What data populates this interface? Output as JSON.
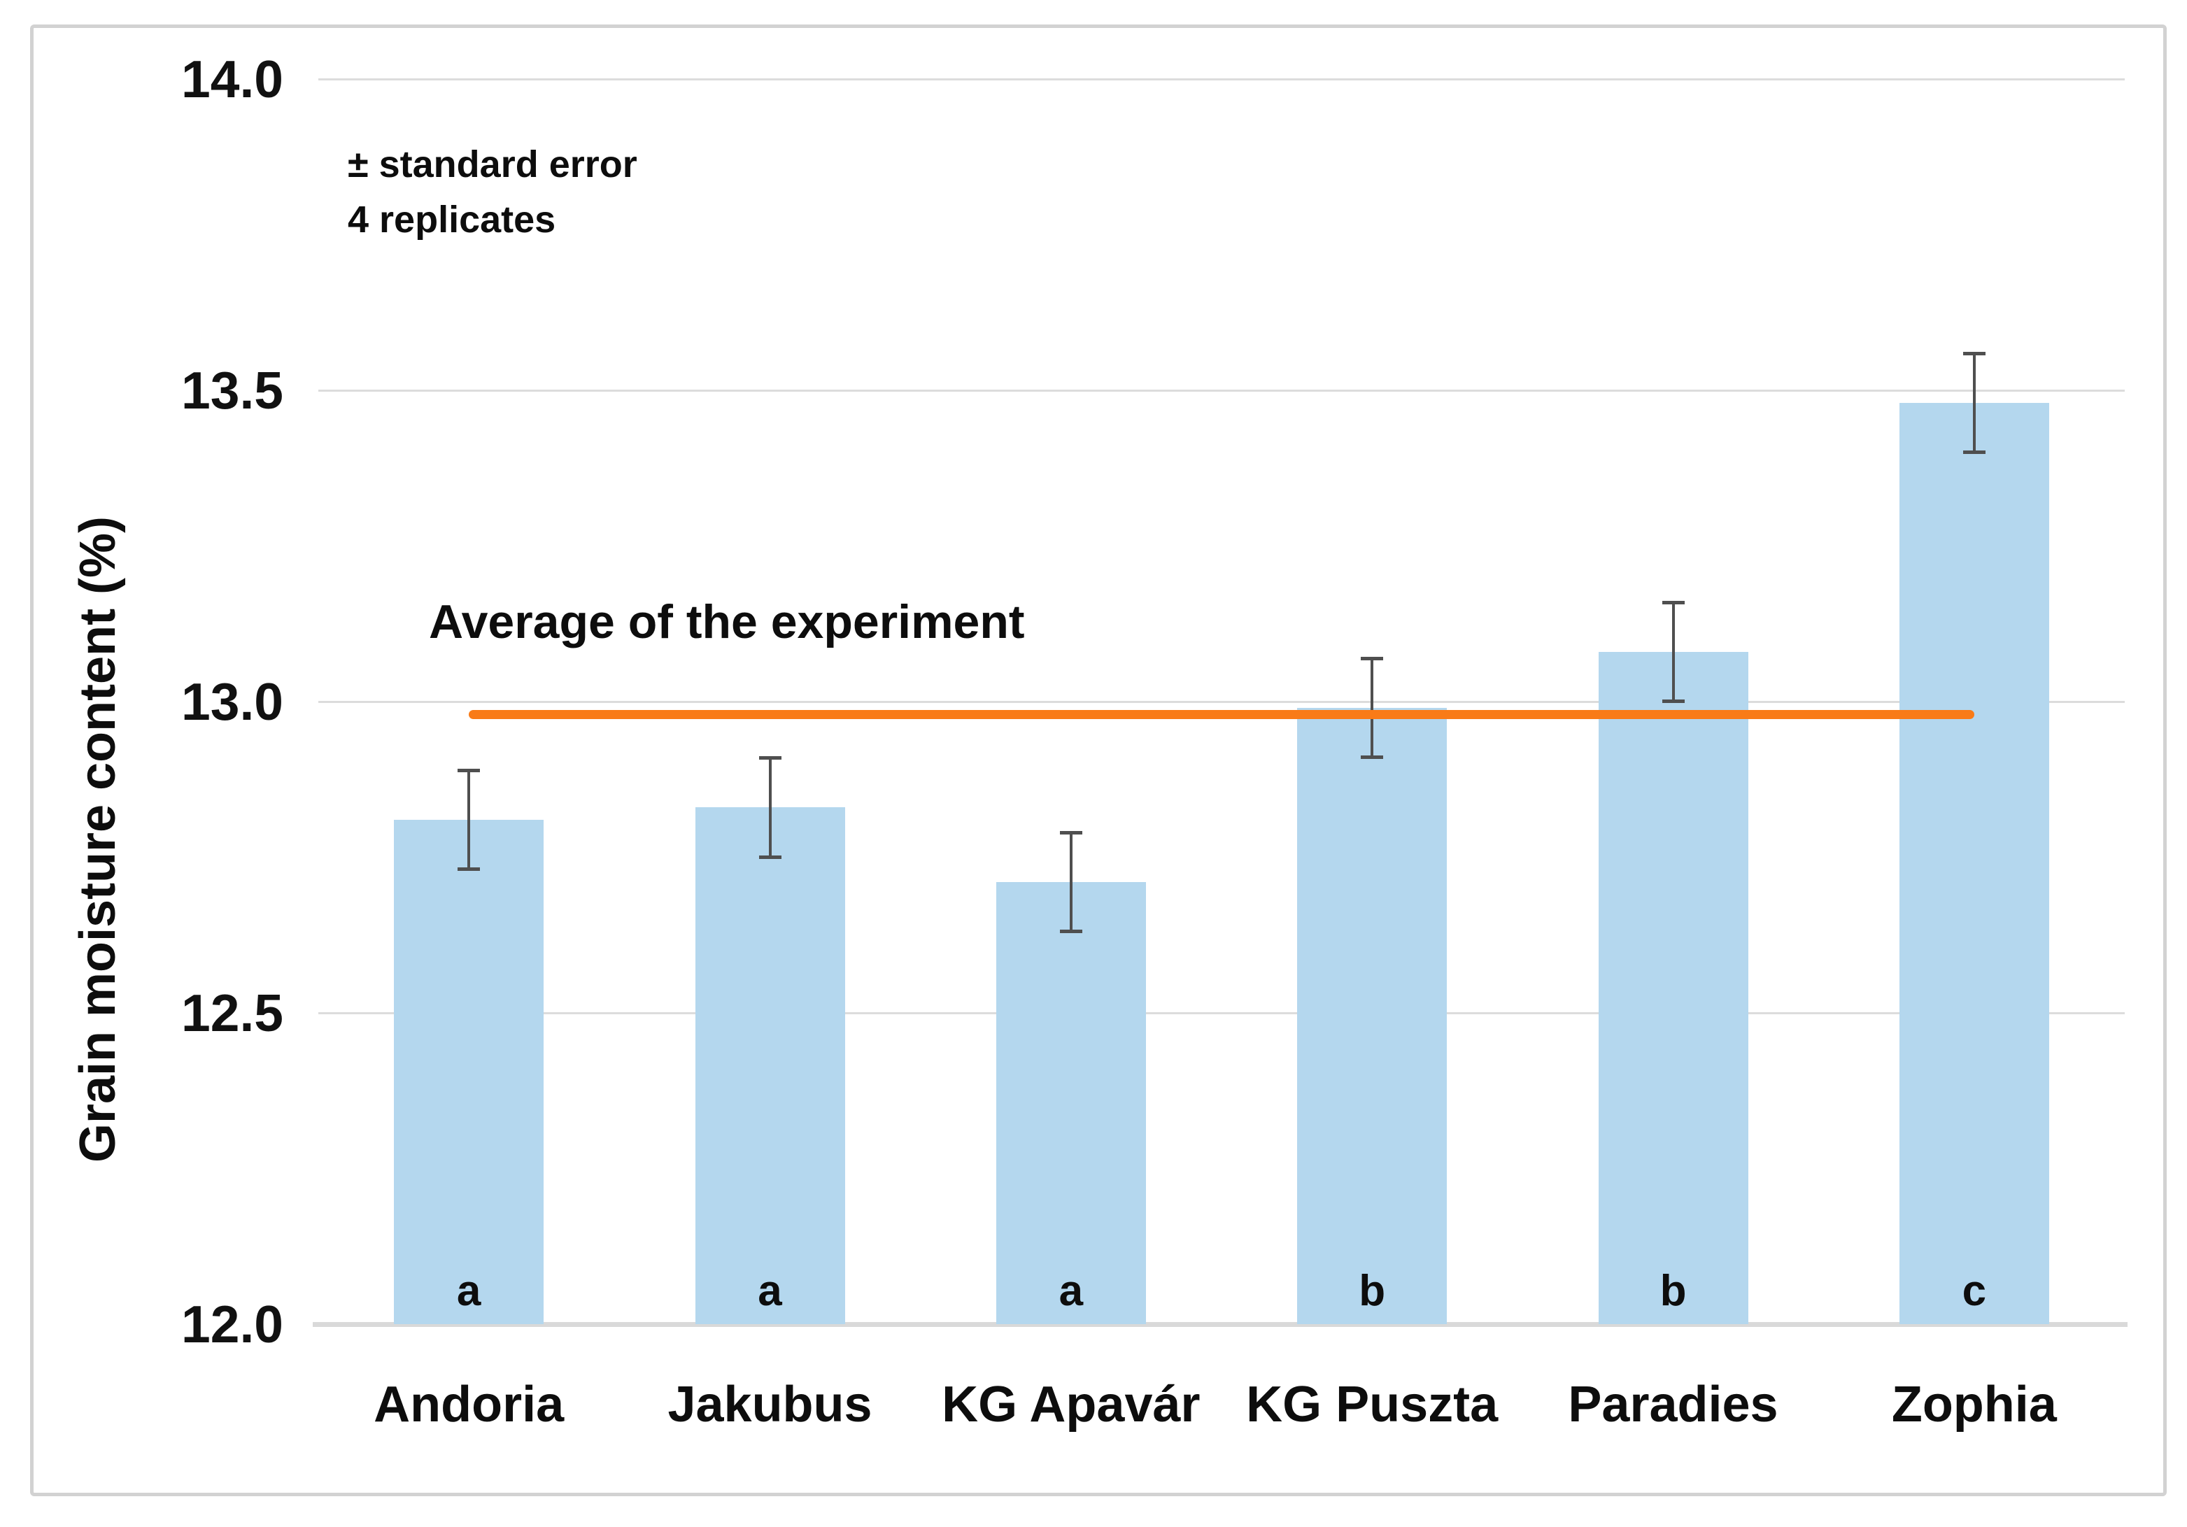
{
  "chart_data": {
    "type": "bar",
    "title": "",
    "categories": [
      "Andoria",
      "Jakubus",
      "KG Apavár",
      "KG Puszta",
      "Paradies",
      "Zophia"
    ],
    "series": [
      {
        "name": "Grain moisture content",
        "values": [
          12.81,
          12.83,
          12.71,
          12.99,
          13.08,
          13.48
        ],
        "errors": [
          0.08,
          0.08,
          0.08,
          0.08,
          0.08,
          0.08
        ]
      }
    ],
    "significance_letters": [
      "a",
      "a",
      "a",
      "b",
      "b",
      "c"
    ],
    "average_line": {
      "label": "Average of the experiment",
      "value": 12.98
    },
    "annotations": [
      "± standard error",
      "4 replicates"
    ],
    "xlabel": "",
    "ylabel": "Grain moisture content (%)",
    "ylim": [
      12.0,
      14.0
    ],
    "yticks": [
      12.0,
      12.5,
      13.0,
      13.5,
      14.0
    ],
    "ytick_labels": [
      "12.0",
      "12.5",
      "13.0",
      "13.5",
      "14.0"
    ],
    "grid": true,
    "legend_position": "none",
    "colors": {
      "bar_fill": "#B4D7EE",
      "average_line": "#F97B17",
      "gridline": "#DCDCDC",
      "axis_line": "#D9D9D9",
      "error_bar": "#4F4F4F",
      "text": "#0D0D0D",
      "frame_border": "#D2D2D2",
      "background": "#FFFFFF"
    }
  }
}
